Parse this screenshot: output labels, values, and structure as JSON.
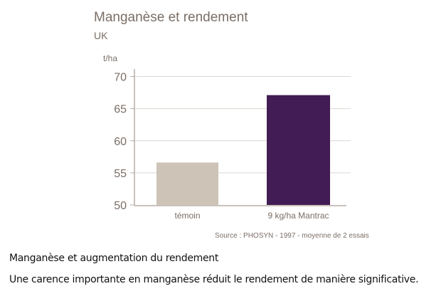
{
  "chart_data": {
    "type": "bar",
    "title": "Manganèse et rendement",
    "subtitle": "UK",
    "ylabel": "t/ha",
    "xlabel": "",
    "categories": [
      "témoin",
      "9 kg/ha Mantrac"
    ],
    "values": [
      56.6,
      67.1
    ],
    "colors": [
      "#cdc3b7",
      "#421c54"
    ],
    "ylim": [
      50,
      70
    ],
    "yticks": [
      50,
      55,
      60,
      65,
      70
    ],
    "grid": true,
    "source": "Source : PHOSYN - 1997 - moyenne de 2 essais"
  },
  "caption": {
    "title": "Manganèse et augmentation du rendement",
    "text": "Une carence importante en manganèse réduit le rendement de manière significative."
  }
}
